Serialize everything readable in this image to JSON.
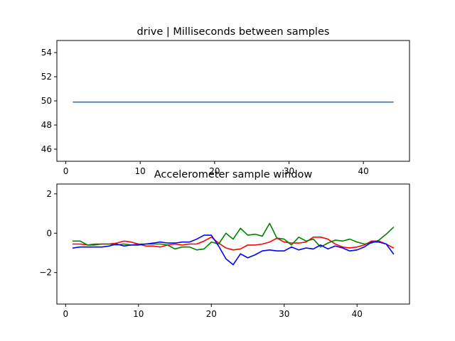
{
  "chart_data": [
    {
      "type": "line",
      "title": "drive | Milliseconds between samples",
      "xlabel": "",
      "ylabel": "",
      "xlim": [
        -1.2,
        46.2
      ],
      "ylim": [
        45,
        55
      ],
      "xticks": [
        0,
        10,
        20,
        30,
        40
      ],
      "yticks": [
        46,
        48,
        50,
        52,
        54
      ],
      "grid": false,
      "series": [
        {
          "color": "#1f77b4",
          "x": [
            1,
            2,
            3,
            4,
            5,
            6,
            7,
            8,
            9,
            10,
            11,
            12,
            13,
            14,
            15,
            16,
            17,
            18,
            19,
            20,
            21,
            22,
            23,
            24,
            25,
            26,
            27,
            28,
            29,
            30,
            31,
            32,
            33,
            34,
            35,
            36,
            37,
            38,
            39,
            40,
            41,
            42,
            43,
            44
          ],
          "y": [
            49.9,
            49.9,
            49.9,
            49.9,
            49.9,
            49.9,
            49.9,
            49.9,
            49.9,
            49.9,
            49.9,
            49.9,
            49.9,
            49.9,
            49.9,
            49.9,
            49.9,
            49.9,
            49.9,
            49.9,
            49.9,
            49.9,
            49.9,
            49.9,
            49.9,
            49.9,
            49.9,
            49.9,
            49.9,
            49.9,
            49.9,
            49.9,
            49.9,
            49.9,
            49.9,
            49.9,
            49.9,
            49.9,
            49.9,
            49.9,
            49.9,
            49.9,
            49.9,
            49.9
          ]
        }
      ]
    },
    {
      "type": "line",
      "title": "Accelerometer sample window",
      "xlabel": "",
      "ylabel": "",
      "xlim": [
        -1.2,
        47.2
      ],
      "ylim": [
        -3.6,
        2.5
      ],
      "xticks": [
        0,
        10,
        20,
        30,
        40
      ],
      "yticks": [
        -2,
        0,
        2
      ],
      "grid": false,
      "series": [
        {
          "color": "#ff0000",
          "x": [
            1,
            2,
            3,
            4,
            5,
            6,
            7,
            8,
            9,
            10,
            11,
            12,
            13,
            14,
            15,
            16,
            17,
            18,
            19,
            20,
            21,
            22,
            23,
            24,
            25,
            26,
            27,
            28,
            29,
            30,
            31,
            32,
            33,
            34,
            35,
            36,
            37,
            38,
            39,
            40,
            41,
            42,
            43,
            44,
            45
          ],
          "y": [
            -0.55,
            -0.55,
            -0.6,
            -0.55,
            -0.55,
            -0.55,
            -0.5,
            -0.4,
            -0.45,
            -0.55,
            -0.65,
            -0.65,
            -0.7,
            -0.6,
            -0.55,
            -0.6,
            -0.55,
            -0.55,
            -0.4,
            -0.2,
            -0.5,
            -0.75,
            -0.85,
            -0.8,
            -0.6,
            -0.6,
            -0.55,
            -0.45,
            -0.25,
            -0.45,
            -0.5,
            -0.5,
            -0.45,
            -0.2,
            -0.2,
            -0.3,
            -0.55,
            -0.7,
            -0.75,
            -0.7,
            -0.6,
            -0.4,
            -0.4,
            -0.55,
            -0.75
          ]
        },
        {
          "color": "#008000",
          "x": [
            1,
            2,
            3,
            4,
            5,
            6,
            7,
            8,
            9,
            10,
            11,
            12,
            13,
            14,
            15,
            16,
            17,
            18,
            19,
            20,
            21,
            22,
            23,
            24,
            25,
            26,
            27,
            28,
            29,
            30,
            31,
            32,
            33,
            34,
            35,
            36,
            37,
            38,
            39,
            40,
            41,
            42,
            43,
            44,
            45
          ],
          "y": [
            -0.4,
            -0.4,
            -0.6,
            -0.6,
            -0.55,
            -0.55,
            -0.6,
            -0.55,
            -0.6,
            -0.55,
            -0.55,
            -0.55,
            -0.55,
            -0.6,
            -0.8,
            -0.7,
            -0.7,
            -0.85,
            -0.8,
            -0.45,
            -0.55,
            0.0,
            -0.3,
            0.25,
            -0.1,
            -0.05,
            -0.15,
            0.5,
            -0.25,
            -0.3,
            -0.6,
            -0.2,
            -0.4,
            -0.3,
            -0.7,
            -0.5,
            -0.35,
            -0.4,
            -0.3,
            -0.45,
            -0.55,
            -0.5,
            -0.35,
            -0.05,
            0.3
          ]
        },
        {
          "color": "#0000ff",
          "x": [
            1,
            2,
            3,
            4,
            5,
            6,
            7,
            8,
            9,
            10,
            11,
            12,
            13,
            14,
            15,
            16,
            17,
            18,
            19,
            20,
            21,
            22,
            23,
            24,
            25,
            26,
            27,
            28,
            29,
            30,
            31,
            32,
            33,
            34,
            35,
            36,
            37,
            38,
            39,
            40,
            41,
            42,
            43,
            44,
            45
          ],
          "y": [
            -0.75,
            -0.7,
            -0.7,
            -0.7,
            -0.7,
            -0.65,
            -0.55,
            -0.65,
            -0.6,
            -0.6,
            -0.55,
            -0.5,
            -0.45,
            -0.5,
            -0.5,
            -0.45,
            -0.45,
            -0.3,
            -0.1,
            -0.1,
            -0.65,
            -1.3,
            -1.6,
            -1.05,
            -1.25,
            -1.1,
            -0.9,
            -0.85,
            -0.9,
            -0.9,
            -0.7,
            -0.85,
            -0.75,
            -0.8,
            -0.6,
            -0.8,
            -0.65,
            -0.75,
            -0.9,
            -0.85,
            -0.7,
            -0.45,
            -0.45,
            -0.55,
            -1.05
          ]
        }
      ]
    }
  ]
}
